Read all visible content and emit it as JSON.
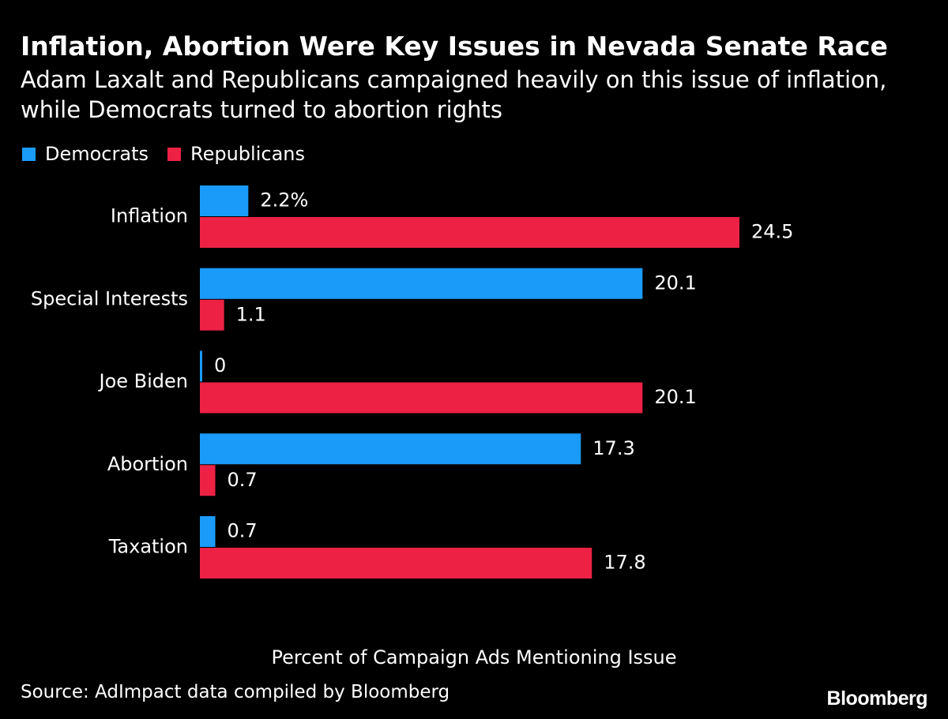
{
  "header": {
    "title": "Inflation, Abortion Were Key Issues in Nevada Senate Race",
    "subtitle": "Adam Laxalt and Republicans campaigned heavily on this issue of inflation, while Democrats turned to abortion rights"
  },
  "colors": {
    "democrats": "#1a9bf9",
    "republicans": "#ec2144",
    "background": "#000000",
    "text": "#ffffff"
  },
  "chart_data": {
    "type": "bar",
    "orientation": "horizontal",
    "title": "Inflation, Abortion Were Key Issues in Nevada Senate Race",
    "subtitle": "Adam Laxalt and Republicans campaigned heavily on this issue of inflation, while Democrats turned to abortion rights",
    "categories": [
      "Inflation",
      "Special Interests",
      "Joe Biden",
      "Abortion",
      "Taxation"
    ],
    "series": [
      {
        "name": "Democrats",
        "color": "#1a9bf9",
        "values": [
          2.2,
          20.1,
          0,
          17.3,
          0.7
        ],
        "labels": [
          "2.2%",
          "20.1",
          "0",
          "17.3",
          "0.7"
        ]
      },
      {
        "name": "Republicans",
        "color": "#ec2144",
        "values": [
          24.5,
          1.1,
          20.1,
          0.7,
          17.8
        ],
        "labels": [
          "24.5",
          "1.1",
          "20.1",
          "0.7",
          "17.8"
        ]
      }
    ],
    "xlabel": "Percent of Campaign Ads Mentioning Issue",
    "ylabel": "",
    "xlim": [
      0,
      24.5
    ],
    "grid": false,
    "legend_position": "top-left"
  },
  "legend": {
    "democrats_label": "Democrats",
    "republicans_label": "Republicans"
  },
  "footer": {
    "xlabel": "Percent of Campaign Ads Mentioning Issue",
    "source": "Source: AdImpact data compiled by Bloomberg",
    "logo": "Bloomberg"
  }
}
